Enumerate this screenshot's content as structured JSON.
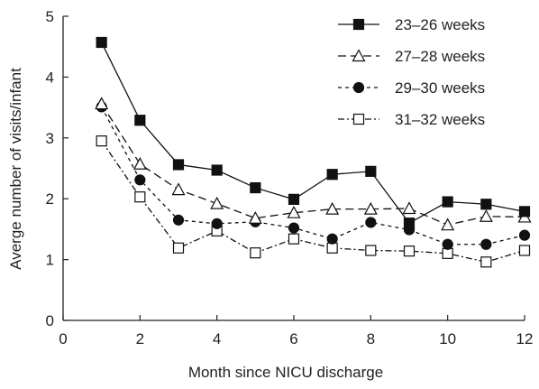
{
  "chart_data": {
    "type": "line",
    "title": "",
    "xlabel": "Month since NICU discharge",
    "ylabel": "Averge number of visits/infant",
    "xlim": [
      0,
      12
    ],
    "ylim": [
      0,
      5
    ],
    "xticks": [
      0,
      2,
      4,
      6,
      8,
      10,
      12
    ],
    "yticks": [
      0,
      1,
      2,
      3,
      4,
      5
    ],
    "grid": false,
    "legend_position": "top-right",
    "x": [
      1,
      2,
      3,
      4,
      5,
      6,
      7,
      8,
      9,
      10,
      11,
      12
    ],
    "series": [
      {
        "name": "23–26 weeks",
        "marker": "square-filled",
        "line": "solid",
        "values": [
          4.57,
          3.29,
          2.56,
          2.47,
          2.18,
          1.99,
          2.4,
          2.45,
          1.6,
          1.95,
          1.91,
          1.79
        ]
      },
      {
        "name": "27–28 weeks",
        "marker": "triangle-open",
        "line": "long-dash",
        "values": [
          3.56,
          2.57,
          2.15,
          1.92,
          1.68,
          1.77,
          1.83,
          1.83,
          1.84,
          1.57,
          1.71,
          1.7
        ]
      },
      {
        "name": "29–30 weeks",
        "marker": "circle-filled",
        "line": "short-dash",
        "values": [
          3.51,
          2.31,
          1.65,
          1.59,
          1.62,
          1.52,
          1.34,
          1.61,
          1.49,
          1.25,
          1.25,
          1.4
        ]
      },
      {
        "name": "31–32 weeks",
        "marker": "square-open",
        "line": "dash-dot",
        "values": [
          2.95,
          2.03,
          1.19,
          1.47,
          1.11,
          1.34,
          1.19,
          1.15,
          1.14,
          1.1,
          0.96,
          1.15
        ]
      }
    ]
  }
}
